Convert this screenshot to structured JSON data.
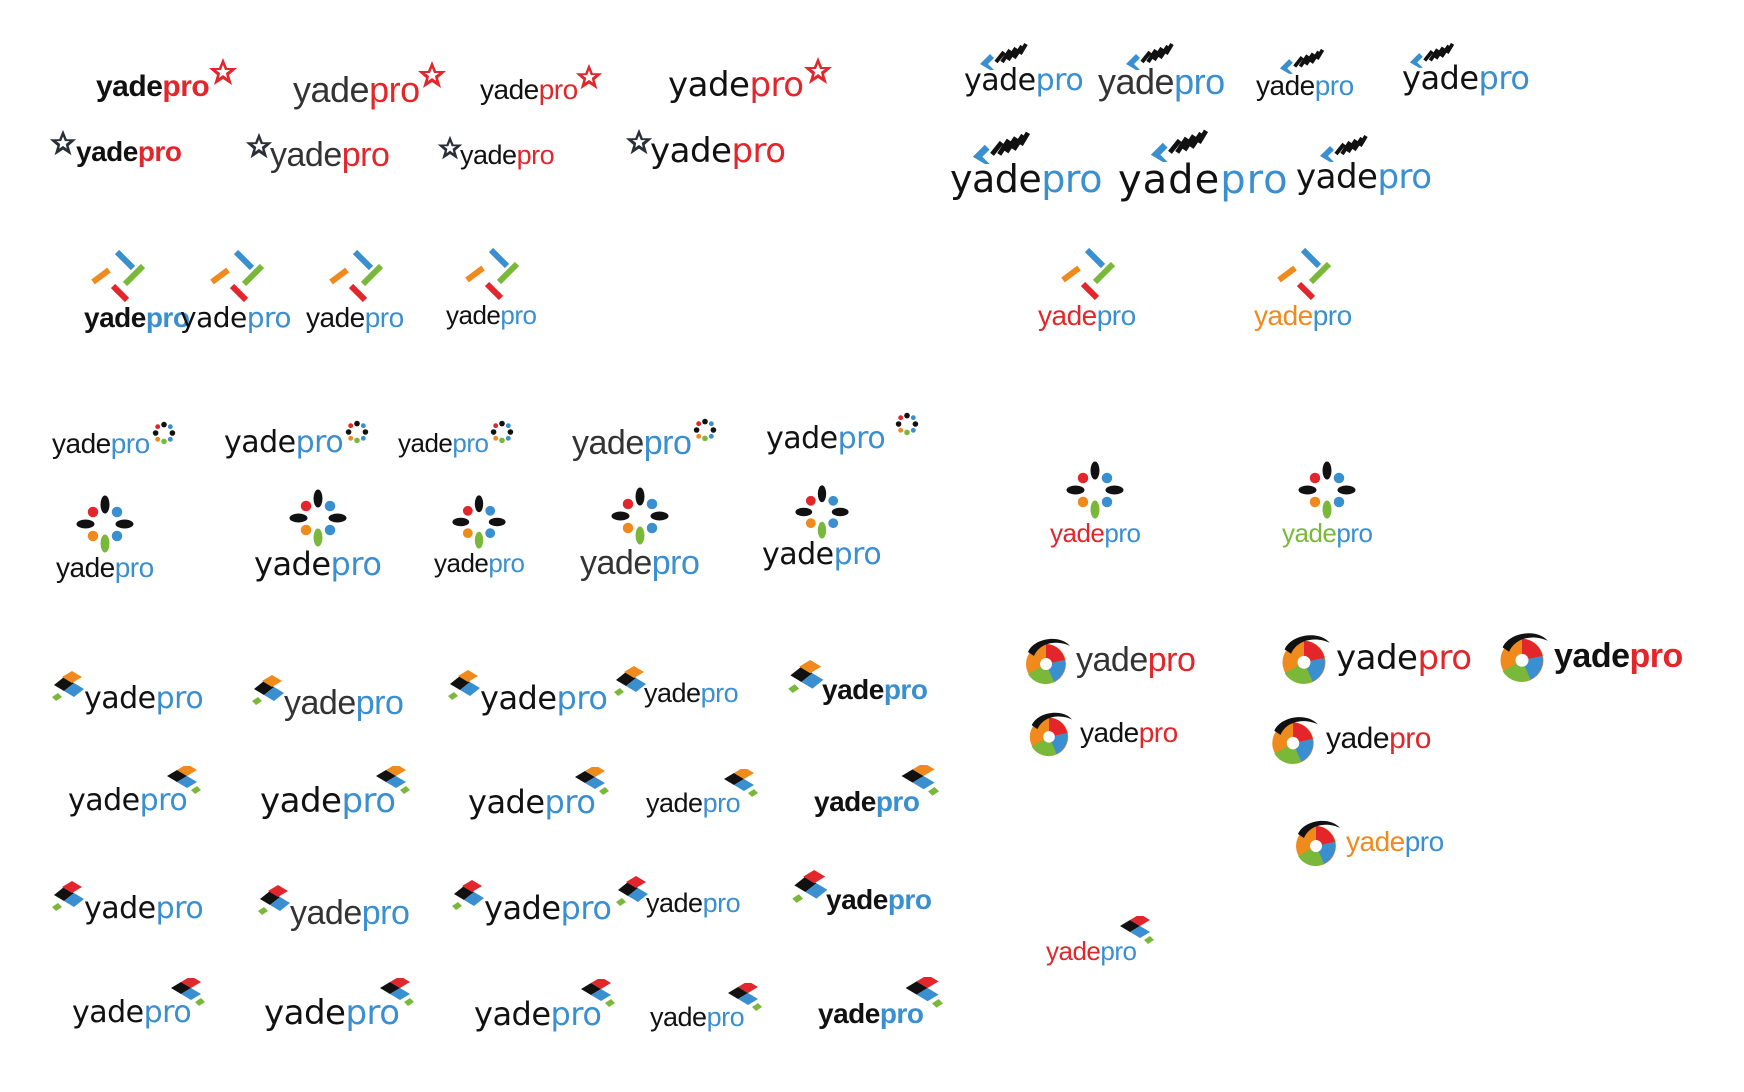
{
  "brand": {
    "part1": "yade",
    "part2": "pro"
  },
  "colors": {
    "red": "#e3262b",
    "blue": "#3a8fd0",
    "black": "#111111",
    "green": "#7ab83a",
    "orange": "#f08a1c",
    "gray": "#8a8f99"
  },
  "icons": [
    "star-burst-icon",
    "chevron-stripes-icon",
    "crossed-sticks-icon",
    "flower-burst-icon",
    "swirl-aperture-icon",
    "tile-stack-icon"
  ]
}
